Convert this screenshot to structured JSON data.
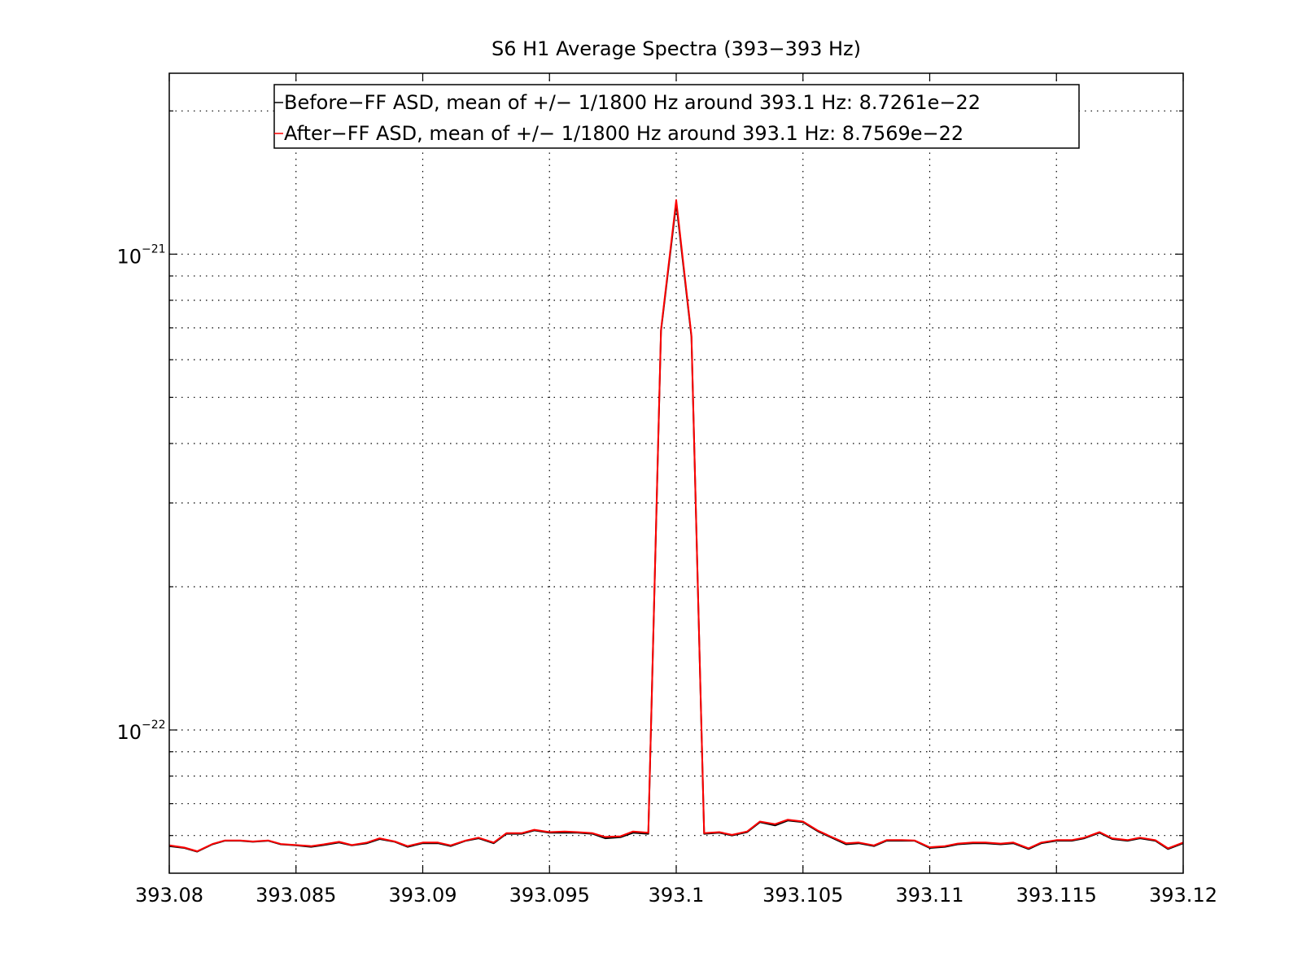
{
  "chart_data": {
    "type": "line",
    "title": "S6 H1 Average Spectra (393−393 Hz)",
    "xlabel": "",
    "ylabel": "",
    "xlim": [
      393.08,
      393.12
    ],
    "ylim": [
      5e-23,
      2.4e-21
    ],
    "yscale": "log",
    "grid": true,
    "legend_position": "top",
    "x_ticks": [
      393.08,
      393.085,
      393.09,
      393.095,
      393.1,
      393.105,
      393.11,
      393.115,
      393.12
    ],
    "x_tick_labels": [
      "393.08",
      "393.085",
      "393.09",
      "393.095",
      "393.1",
      "393.105",
      "393.11",
      "393.115",
      "393.12"
    ],
    "y_ticks": [
      1e-22,
      1e-21
    ],
    "y_tick_labels": [
      {
        "base": "10",
        "exp": "−22"
      },
      {
        "base": "10",
        "exp": "−21"
      }
    ],
    "series": [
      {
        "name": "Before−FF ASD, mean of +/− 1/1800 Hz around 393.1 Hz: 8.7261e−22",
        "color": "#000000",
        "x": [
          393.08,
          393.0806,
          393.0811,
          393.0817,
          393.0822,
          393.0828,
          393.0833,
          393.0839,
          393.0844,
          393.085,
          393.0856,
          393.0861,
          393.0867,
          393.0872,
          393.0878,
          393.0883,
          393.0889,
          393.0894,
          393.09,
          393.0906,
          393.0911,
          393.0917,
          393.0922,
          393.0928,
          393.0933,
          393.0939,
          393.0944,
          393.095,
          393.0956,
          393.0961,
          393.0967,
          393.0972,
          393.0978,
          393.0983,
          393.0989,
          393.0994,
          393.1,
          393.1006,
          393.1011,
          393.1017,
          393.1022,
          393.1028,
          393.1033,
          393.1039,
          393.1044,
          393.105,
          393.1056,
          393.1061,
          393.1067,
          393.1072,
          393.1078,
          393.1083,
          393.1089,
          393.1094,
          393.11,
          393.1106,
          393.1111,
          393.1117,
          393.1122,
          393.1128,
          393.1133,
          393.1139,
          393.1144,
          393.115,
          393.1156,
          393.1161,
          393.1167,
          393.1172,
          393.1178,
          393.1183,
          393.1189,
          393.1194,
          393.12
        ],
        "y": [
          5.7e-23,
          5.65e-23,
          5.55e-23,
          5.75e-23,
          5.85e-23,
          5.85e-23,
          5.82e-23,
          5.85e-23,
          5.75e-23,
          5.72e-23,
          5.68e-23,
          5.73e-23,
          5.8e-23,
          5.72e-23,
          5.78e-23,
          5.9e-23,
          5.82e-23,
          5.68e-23,
          5.78e-23,
          5.78e-23,
          5.7e-23,
          5.85e-23,
          5.92e-23,
          5.78e-23,
          6.05e-23,
          6.05e-23,
          6.15e-23,
          6.08e-23,
          6.08e-23,
          6.08e-23,
          6.05e-23,
          5.92e-23,
          5.95e-23,
          6.08e-23,
          6.05e-23,
          6.9e-22,
          1.28e-21,
          6.7e-22,
          6.05e-23,
          6.08e-23,
          6e-23,
          6.1e-23,
          6.4e-23,
          6.3e-23,
          6.45e-23,
          6.4e-23,
          6.12e-23,
          5.95e-23,
          5.75e-23,
          5.78e-23,
          5.7e-23,
          5.85e-23,
          5.85e-23,
          5.85e-23,
          5.65e-23,
          5.68e-23,
          5.75e-23,
          5.78e-23,
          5.78e-23,
          5.75e-23,
          5.78e-23,
          5.62e-23,
          5.78e-23,
          5.85e-23,
          5.85e-23,
          5.92e-23,
          6.08e-23,
          5.9e-23,
          5.85e-23,
          5.92e-23,
          5.85e-23,
          5.62e-23,
          5.78e-23
        ]
      },
      {
        "name": "After−FF ASD, mean of +/− 1/1800 Hz around 393.1 Hz: 8.7569e−22",
        "color": "#ff0000",
        "x": [
          393.08,
          393.0806,
          393.0811,
          393.0817,
          393.0822,
          393.0828,
          393.0833,
          393.0839,
          393.0844,
          393.085,
          393.0856,
          393.0861,
          393.0867,
          393.0872,
          393.0878,
          393.0883,
          393.0889,
          393.0894,
          393.09,
          393.0906,
          393.0911,
          393.0917,
          393.0922,
          393.0928,
          393.0933,
          393.0939,
          393.0944,
          393.095,
          393.0956,
          393.0961,
          393.0967,
          393.0972,
          393.0978,
          393.0983,
          393.0989,
          393.0994,
          393.1,
          393.1006,
          393.1011,
          393.1017,
          393.1022,
          393.1028,
          393.1033,
          393.1039,
          393.1044,
          393.105,
          393.1056,
          393.1061,
          393.1067,
          393.1072,
          393.1078,
          393.1083,
          393.1089,
          393.1094,
          393.11,
          393.1106,
          393.1111,
          393.1117,
          393.1122,
          393.1128,
          393.1133,
          393.1139,
          393.1144,
          393.115,
          393.1156,
          393.1161,
          393.1167,
          393.1172,
          393.1178,
          393.1183,
          393.1189,
          393.1194,
          393.12
        ],
        "y": [
          5.72e-23,
          5.66e-23,
          5.56e-23,
          5.76e-23,
          5.86e-23,
          5.86e-23,
          5.83e-23,
          5.86e-23,
          5.76e-23,
          5.73e-23,
          5.7e-23,
          5.75e-23,
          5.82e-23,
          5.73e-23,
          5.8e-23,
          5.92e-23,
          5.83e-23,
          5.7e-23,
          5.8e-23,
          5.8e-23,
          5.72e-23,
          5.86e-23,
          5.94e-23,
          5.8e-23,
          6.07e-23,
          6.07e-23,
          6.17e-23,
          6.1e-23,
          6.12e-23,
          6.1e-23,
          6.07e-23,
          5.96e-23,
          5.98e-23,
          6.12e-23,
          6.08e-23,
          6.95e-22,
          1.3e-21,
          6.75e-22,
          6.07e-23,
          6.1e-23,
          6.02e-23,
          6.12e-23,
          6.42e-23,
          6.34e-23,
          6.48e-23,
          6.42e-23,
          6.14e-23,
          5.97e-23,
          5.78e-23,
          5.8e-23,
          5.72e-23,
          5.87e-23,
          5.87e-23,
          5.86e-23,
          5.67e-23,
          5.7e-23,
          5.77e-23,
          5.8e-23,
          5.8e-23,
          5.77e-23,
          5.8e-23,
          5.64e-23,
          5.8e-23,
          5.87e-23,
          5.87e-23,
          5.94e-23,
          6.1e-23,
          5.92e-23,
          5.87e-23,
          5.94e-23,
          5.87e-23,
          5.64e-23,
          5.8e-23
        ]
      }
    ]
  }
}
